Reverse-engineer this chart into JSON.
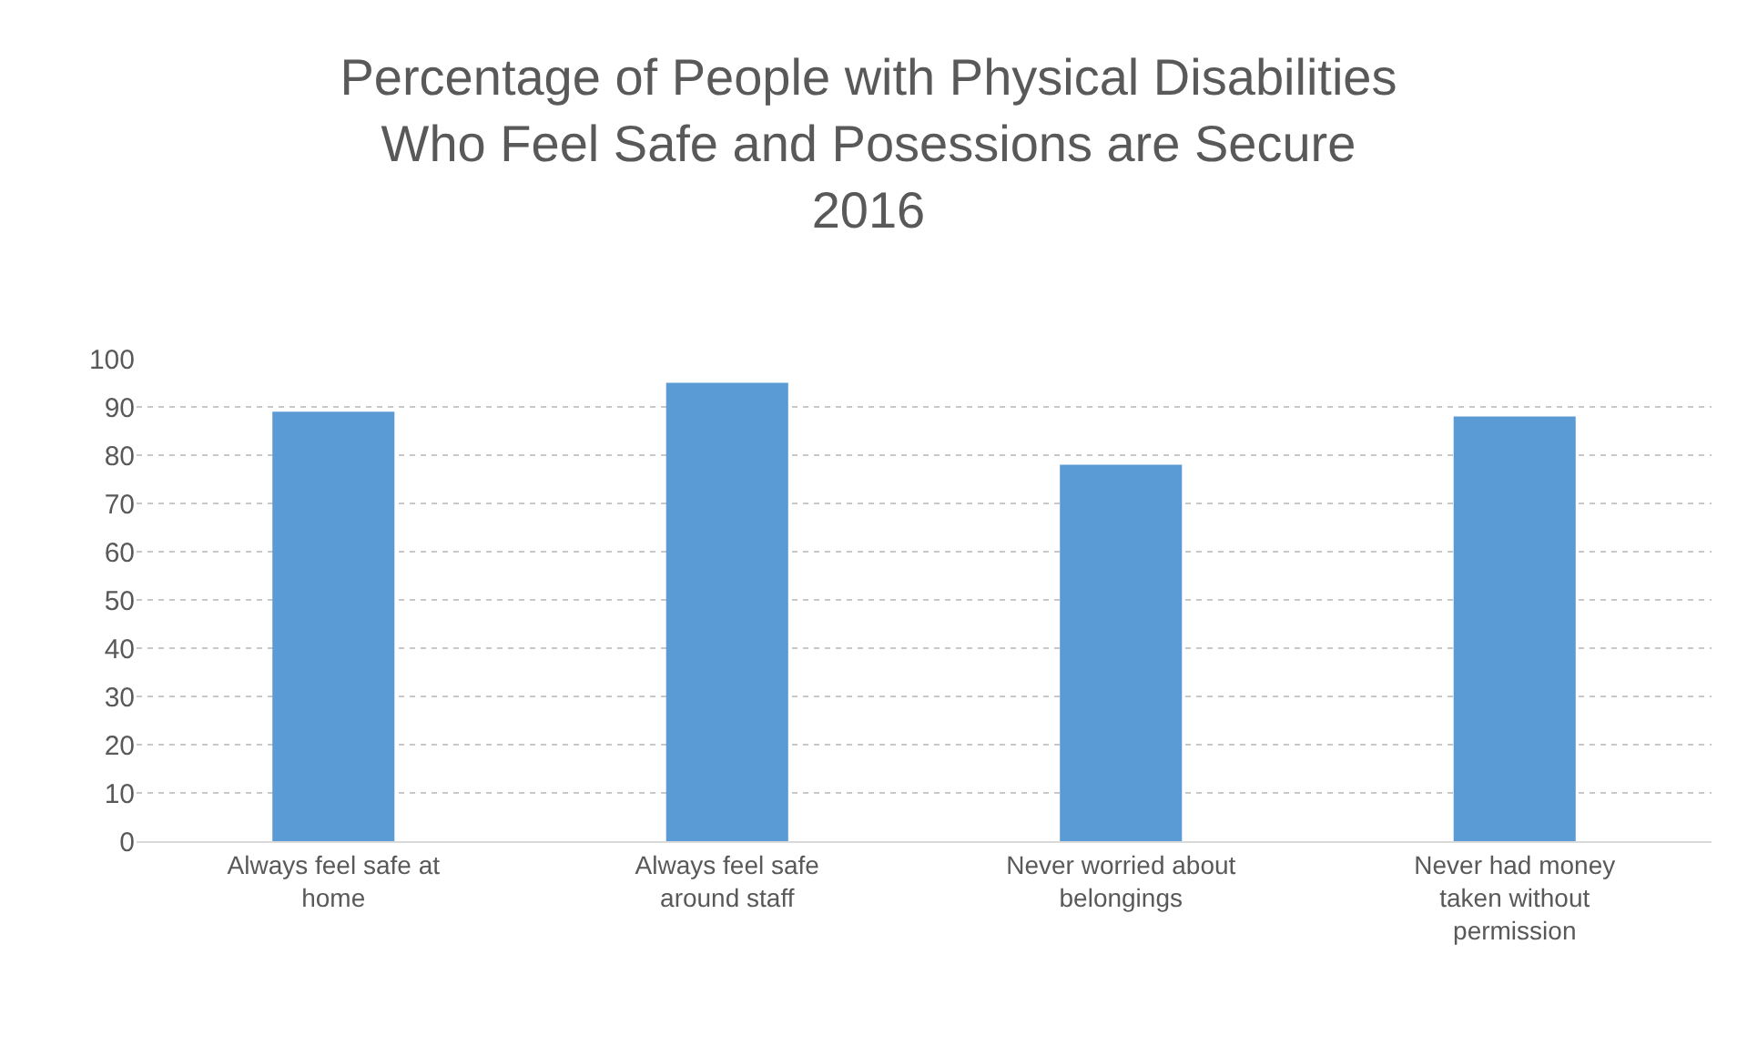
{
  "chart_data": {
    "type": "bar",
    "title": "Percentage of People with Physical Disabilities\nWho Feel Safe and Posessions are Secure\n2016",
    "categories": [
      "Always feel safe at home",
      "Always feel safe around staff",
      "Never worried about belongings",
      "Never had money taken without permission"
    ],
    "values": [
      89,
      95,
      78,
      88
    ],
    "color": "#5b9bd5",
    "ylim": [
      0,
      100
    ],
    "yticks": [
      0,
      10,
      20,
      30,
      40,
      50,
      60,
      70,
      80,
      90,
      100
    ],
    "grid": "y"
  }
}
